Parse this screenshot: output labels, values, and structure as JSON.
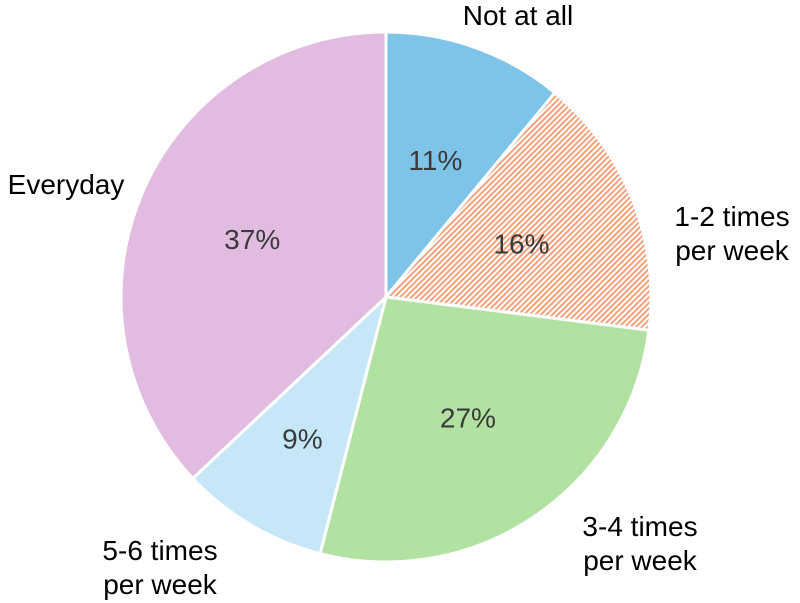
{
  "chart_data": {
    "type": "pie",
    "slices": [
      {
        "name": "Not at all",
        "label_lines": [
          "Not at all"
        ],
        "value": 11,
        "pct_label": "11%",
        "color": "#7ec3e8",
        "pattern": "none"
      },
      {
        "name": "1-2 times per week",
        "label_lines": [
          "1-2 times",
          "per week"
        ],
        "value": 16,
        "pct_label": "16%",
        "color": "#f4a27c",
        "pattern": "diagonal-hatch"
      },
      {
        "name": "3-4 times per week",
        "label_lines": [
          "3-4 times",
          "per week"
        ],
        "value": 27,
        "pct_label": "27%",
        "color": "#b2e2a2",
        "pattern": "none"
      },
      {
        "name": "5-6 times per week",
        "label_lines": [
          "5-6 times",
          "per week"
        ],
        "value": 9,
        "pct_label": "9%",
        "color": "#c5e7f7",
        "pattern": "none"
      },
      {
        "name": "Everyday",
        "label_lines": [
          "Everyday"
        ],
        "value": 37,
        "pct_label": "37%",
        "color": "#e2bce0",
        "pattern": "none"
      }
    ],
    "start_angle": "12 o'clock",
    "direction": "clockwise",
    "legend": "none"
  }
}
